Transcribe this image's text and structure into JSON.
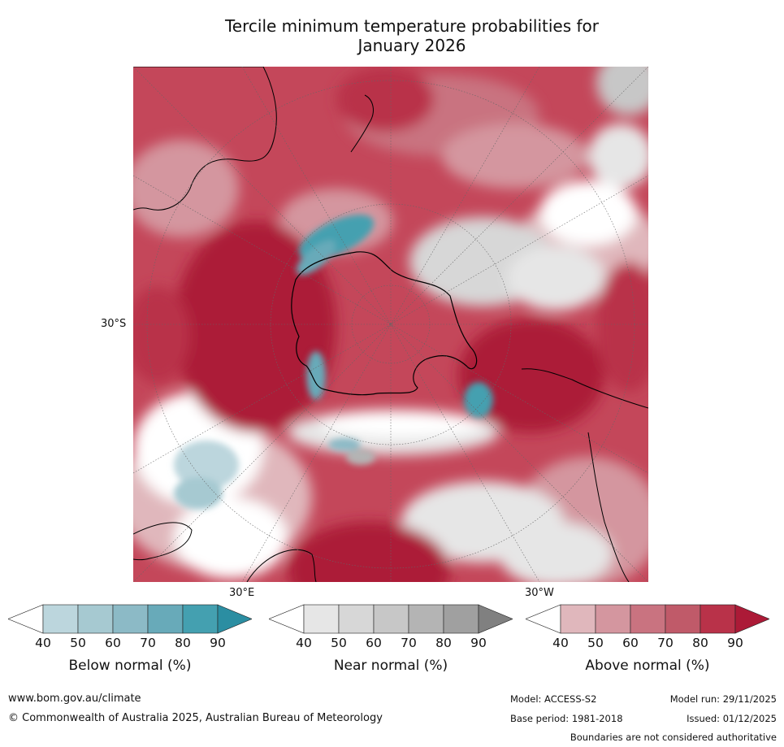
{
  "title": {
    "line1": "Tercile minimum temperature probabilities for",
    "line2": "January 2026"
  },
  "map": {
    "projection": "south polar stereographic",
    "lat_label": "30°S",
    "lon_label_east": "30°E",
    "lon_label_west": "30°W"
  },
  "legends": [
    {
      "title": "Below normal (%)",
      "ticks": [
        "40",
        "50",
        "60",
        "70",
        "80",
        "90"
      ],
      "colors": [
        "#ffffff",
        "#bcd6dd",
        "#a6c9d1",
        "#8cbac6",
        "#68aab9",
        "#44a0b0",
        "#2b8ea2"
      ]
    },
    {
      "title": "Near normal (%)",
      "ticks": [
        "40",
        "50",
        "60",
        "70",
        "80",
        "90"
      ],
      "colors": [
        "#ffffff",
        "#e6e6e6",
        "#d7d7d7",
        "#c7c7c7",
        "#b4b4b4",
        "#a0a0a0",
        "#808080"
      ]
    },
    {
      "title": "Above normal (%)",
      "ticks": [
        "40",
        "50",
        "60",
        "70",
        "80",
        "90"
      ],
      "colors": [
        "#ffffff",
        "#e0b7bc",
        "#d4969f",
        "#c97380",
        "#c05a69",
        "#b93249",
        "#ac1a37"
      ]
    }
  ],
  "footer": {
    "website": "www.bom.gov.au/climate",
    "copyright": "© Commonwealth of Australia 2025, Australian Bureau of Meteorology",
    "model": "Model: ACCESS-S2",
    "model_run": "Model run: 29/11/2025",
    "base_period": "Base period: 1981-2018",
    "issued": "Issued: 01/12/2025",
    "disclaimer": "Boundaries are not considered authoritative"
  }
}
